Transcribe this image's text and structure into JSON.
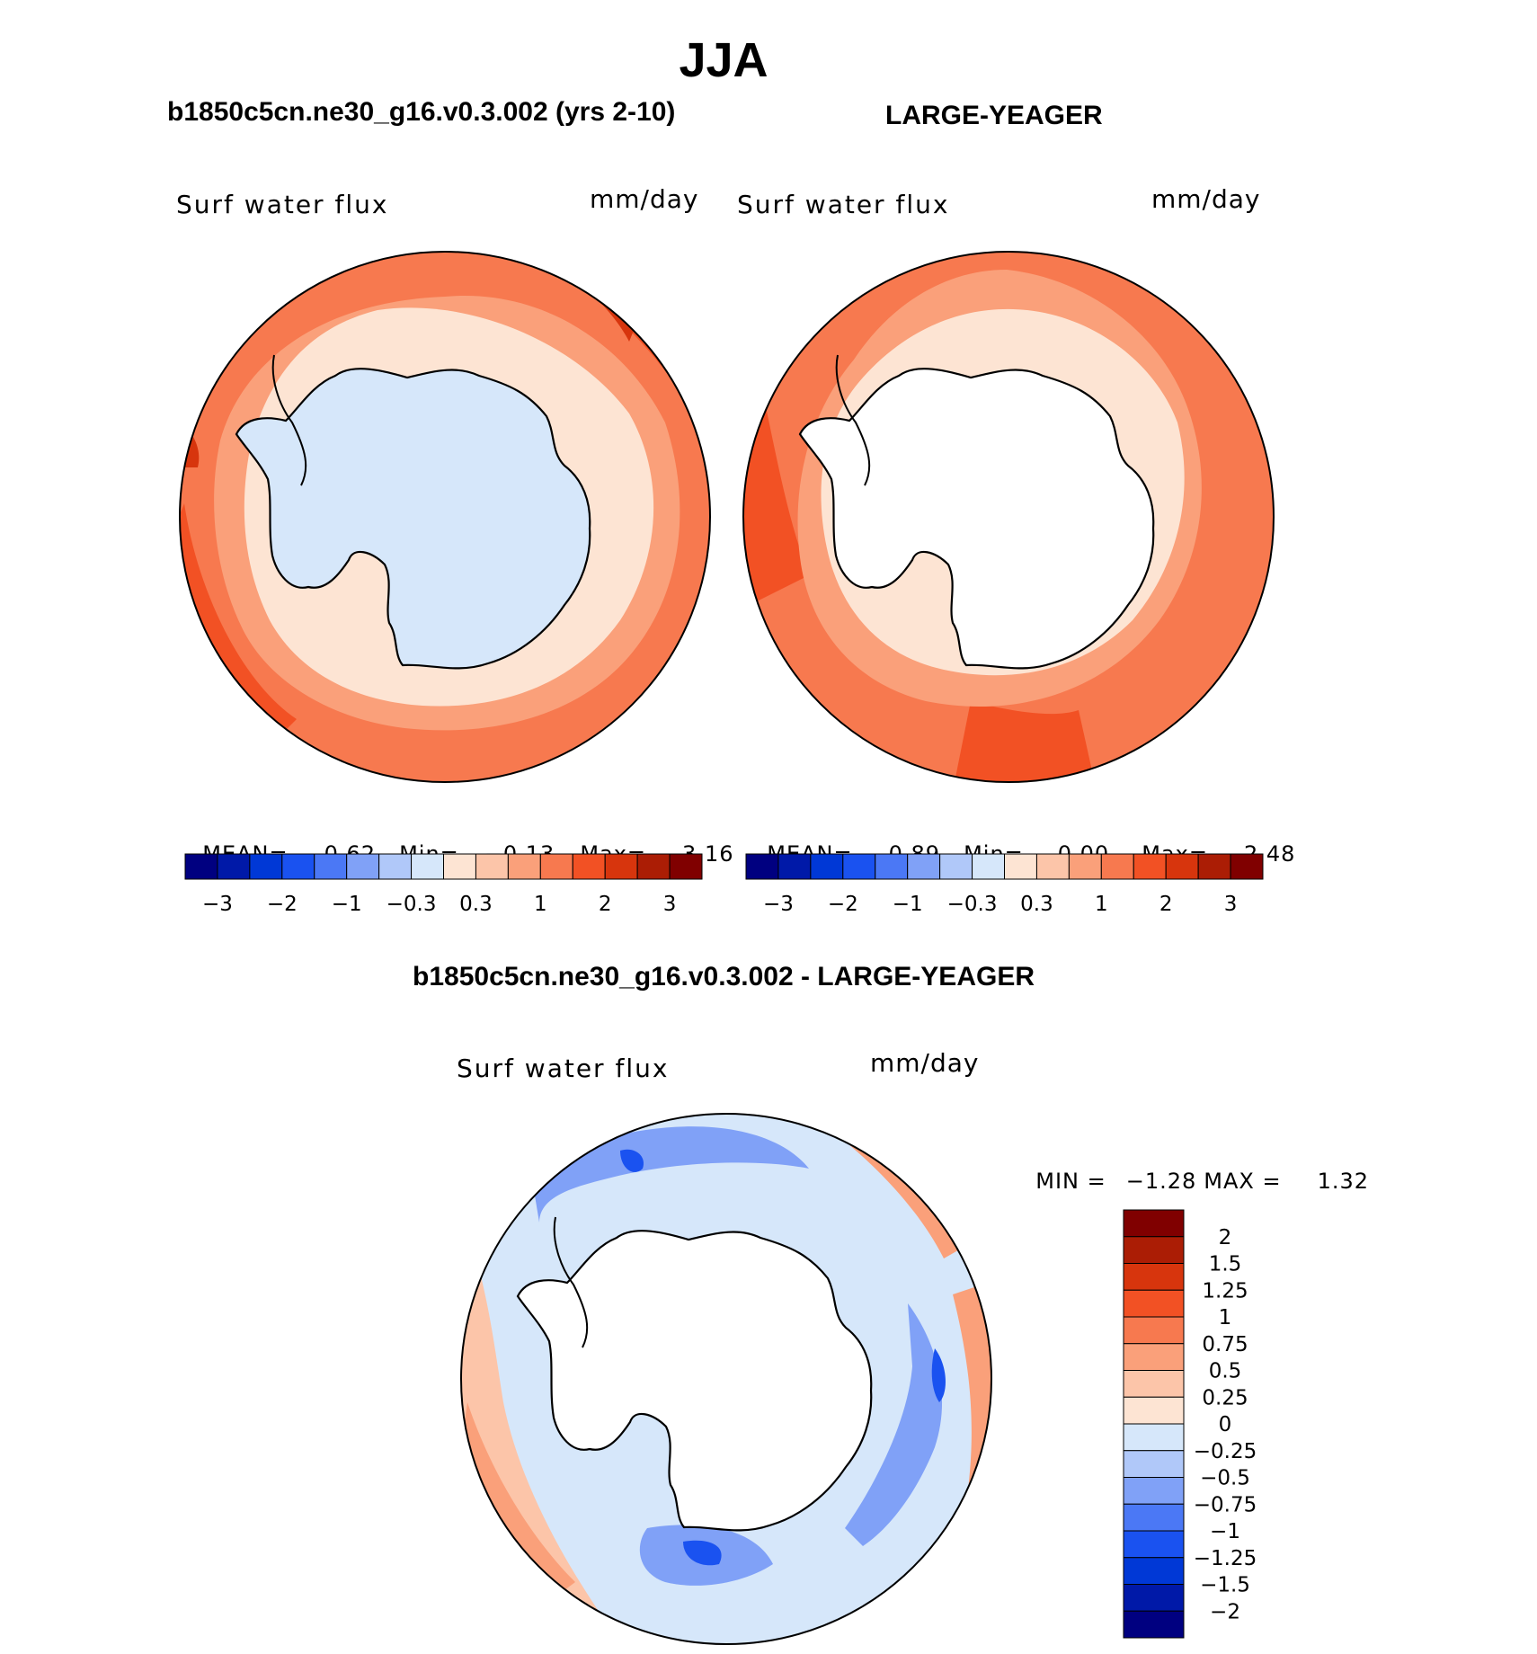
{
  "figure": {
    "season": "JJA",
    "case_title": "b1850c5cn.ne30_g16.v0.3.002 (yrs 2-10)",
    "obs_title": "LARGE-YEAGER",
    "diff_title": "b1850c5cn.ne30_g16.v0.3.002 - LARGE-YEAGER"
  },
  "panels": {
    "case": {
      "variable": "Surf water flux",
      "units": "mm/day",
      "mean_label": "MEAN=",
      "mean": "0.62",
      "min_label": "Min=",
      "min": "−0.13",
      "max_label": "Max=",
      "max": "3.16"
    },
    "obs": {
      "variable": "Surf water flux",
      "units": "mm/day",
      "mean_label": "MEAN=",
      "mean": "0.89",
      "min_label": "Min=",
      "min": "0.00",
      "max_label": "Max=",
      "max": "2.48"
    },
    "diff": {
      "variable": "Surf water flux",
      "units": "mm/day",
      "min_label": "MIN =",
      "min": "−1.28",
      "max_label": "MAX =",
      "max": "1.32"
    }
  },
  "colors": {
    "abs_scale": [
      "#000080",
      "#0019a8",
      "#0038d6",
      "#1a52f0",
      "#4b78f5",
      "#80a1f7",
      "#b0c8f9",
      "#d6e7fa",
      "#fde4d3",
      "#fcc5a9",
      "#faa07a",
      "#f7794f",
      "#f25124",
      "#d7350d",
      "#ab1d05",
      "#800000"
    ],
    "diff_scale": [
      "#000080",
      "#0019a8",
      "#0038d6",
      "#1a52f0",
      "#4b78f5",
      "#80a1f7",
      "#b0c8f9",
      "#d6e7fa",
      "#fde4d3",
      "#fcc5a9",
      "#faa07a",
      "#f7794f",
      "#f25124",
      "#d7350d",
      "#ab1d05",
      "#800000"
    ],
    "land": "#ffffff",
    "outline": "#000000"
  },
  "chart_data": [
    {
      "type": "heatmap",
      "projection": "south-polar-stereographic",
      "title": "b1850c5cn.ne30_g16.v0.3.002 (yrs 2-10)",
      "variable": "Surf water flux",
      "units": "mm/day",
      "stats": {
        "mean": 0.62,
        "min": -0.13,
        "max": 3.16
      },
      "colorbar_ticks": [
        "−3",
        "−2",
        "−1",
        "−0.3",
        "0.3",
        "1",
        "2",
        "3"
      ],
      "contour_levels": [
        -3,
        -2.5,
        -2,
        -1.5,
        -1,
        -0.5,
        -0.3,
        0,
        0.3,
        0.5,
        1,
        1.5,
        2,
        2.5,
        3
      ],
      "field_description_levels": {
        "antarctica": -0.1,
        "sea_ice_zone": 0.15,
        "subpolar_ring": 0.7,
        "midlatitude_ring": 1.8,
        "outer_ring": 2.6
      }
    },
    {
      "type": "heatmap",
      "projection": "south-polar-stereographic",
      "title": "LARGE-YEAGER",
      "variable": "Surf water flux",
      "units": "mm/day",
      "stats": {
        "mean": 0.89,
        "min": 0.0,
        "max": 2.48
      },
      "colorbar_ticks": [
        "−3",
        "−2",
        "−1",
        "−0.3",
        "0.3",
        "1",
        "2",
        "3"
      ],
      "contour_levels": [
        -3,
        -2.5,
        -2,
        -1.5,
        -1,
        -0.5,
        -0.3,
        0,
        0.3,
        0.5,
        1,
        1.5,
        2,
        2.5,
        3
      ]
    },
    {
      "type": "heatmap",
      "projection": "south-polar-stereographic",
      "title": "b1850c5cn.ne30_g16.v0.3.002 - LARGE-YEAGER",
      "variable": "Surf water flux",
      "units": "mm/day",
      "stats": {
        "min": -1.28,
        "max": 1.32
      },
      "colorbar_ticks": [
        "2",
        "1.5",
        "1.25",
        "1",
        "0.75",
        "0.5",
        "0.25",
        "0",
        "−0.25",
        "−0.5",
        "−0.75",
        "−1",
        "−1.25",
        "−1.5",
        "−2"
      ],
      "contour_levels": [
        -2,
        -1.5,
        -1.25,
        -1,
        -0.75,
        -0.5,
        -0.25,
        0,
        0.25,
        0.5,
        0.75,
        1,
        1.25,
        1.5,
        2
      ]
    }
  ]
}
